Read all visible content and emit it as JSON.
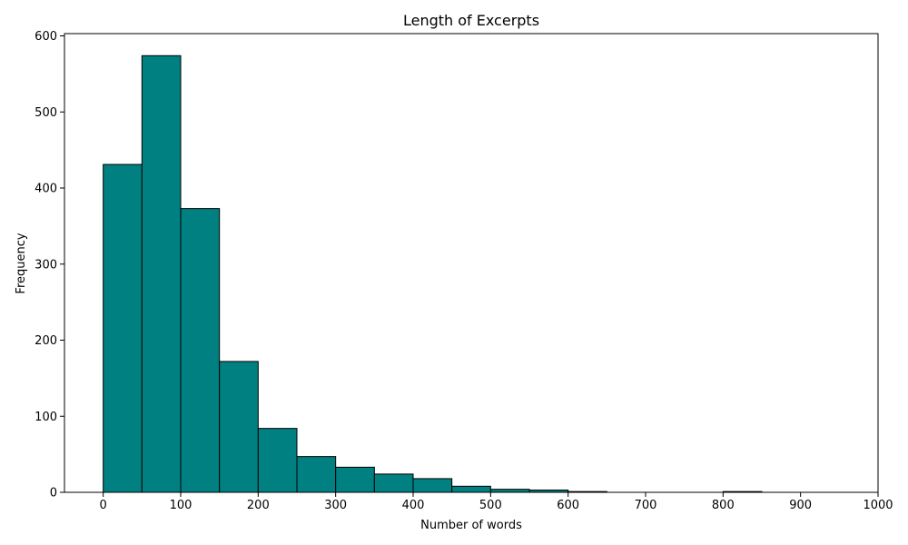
{
  "chart_data": {
    "type": "bar",
    "title": "Length of Excerpts",
    "xlabel": "Number of words",
    "ylabel": "Frequency",
    "bin_edges": [
      0,
      50,
      100,
      150,
      200,
      250,
      300,
      350,
      400,
      450,
      500,
      550,
      600,
      650,
      700,
      750,
      800,
      850,
      900,
      950
    ],
    "values": [
      431,
      574,
      373,
      172,
      84,
      47,
      33,
      24,
      18,
      8,
      4,
      3,
      1,
      0,
      0,
      0,
      1,
      0,
      0
    ],
    "xlim": [
      -50,
      1000
    ],
    "ylim": [
      0,
      603
    ],
    "xticks": [
      0,
      100,
      200,
      300,
      400,
      500,
      600,
      700,
      800,
      900,
      1000
    ],
    "yticks": [
      0,
      100,
      200,
      300,
      400,
      500,
      600
    ],
    "grid": false,
    "bar_color": "#008080",
    "edge_color": "#000000"
  }
}
